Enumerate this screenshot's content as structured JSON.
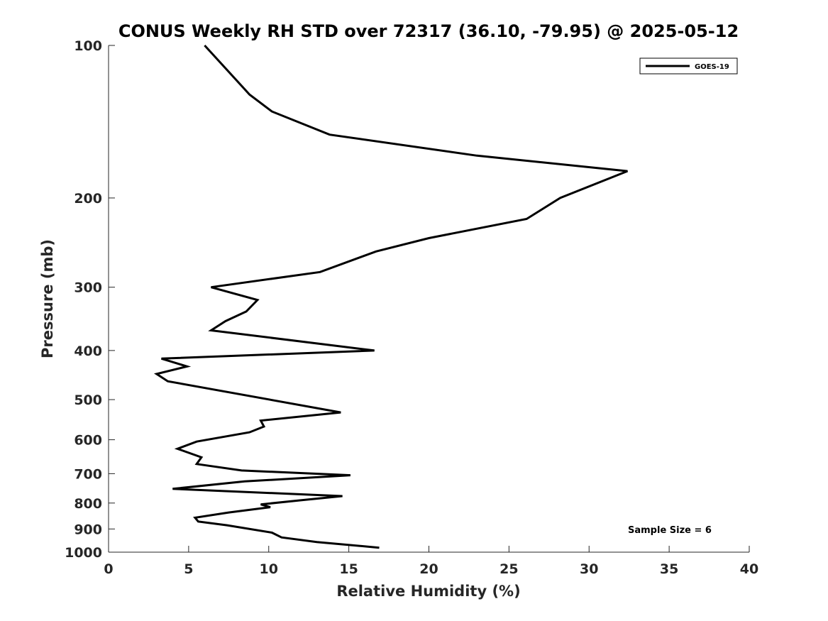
{
  "chart_data": {
    "type": "line",
    "title": "CONUS Weekly RH STD over 72317 (36.10, -79.95) @ 2025-05-12",
    "xlabel": "Relative Humidity (%)",
    "ylabel": "Pressure (mb)",
    "xlim": [
      0,
      40
    ],
    "ylim": [
      100,
      1000
    ],
    "y_scale": "log",
    "y_reversed": true,
    "xticks": [
      0,
      5,
      10,
      15,
      20,
      25,
      30,
      35,
      40
    ],
    "xtick_labels": [
      "0",
      "5",
      "10",
      "15",
      "20",
      "25",
      "30",
      "35",
      "40"
    ],
    "yticks": [
      100,
      200,
      300,
      400,
      500,
      600,
      700,
      800,
      900,
      1000
    ],
    "ytick_labels": [
      "100",
      "200",
      "300",
      "400",
      "500",
      "600",
      "700",
      "800",
      "900",
      "1000"
    ],
    "grid": false,
    "legend_position": "top-right",
    "annotation": "Sample Size = 6",
    "series": [
      {
        "name": "GOES-19",
        "color": "#000000",
        "x": [
          6.0,
          8.8,
          10.2,
          13.8,
          23.0,
          32.4,
          28.2,
          26.1,
          20.0,
          16.7,
          13.2,
          6.4,
          9.3,
          8.6,
          7.3,
          6.4,
          16.6,
          3.3,
          4.9,
          3.0,
          3.7,
          14.5,
          9.5,
          9.7,
          8.8,
          5.5,
          4.3,
          5.8,
          5.5,
          8.3,
          15.1,
          8.5,
          4.0,
          14.6,
          12.0,
          9.5,
          10.1,
          7.5,
          5.4,
          5.6,
          7.4,
          10.2,
          10.8,
          13.0,
          16.9
        ],
        "y": [
          100,
          125,
          135,
          150,
          165,
          177,
          200,
          220,
          240,
          255,
          280,
          300,
          318,
          335,
          350,
          365,
          400,
          415,
          430,
          445,
          460,
          530,
          550,
          565,
          580,
          605,
          625,
          650,
          670,
          690,
          705,
          725,
          750,
          775,
          790,
          805,
          815,
          835,
          855,
          870,
          885,
          915,
          935,
          955,
          980
        ]
      }
    ]
  }
}
